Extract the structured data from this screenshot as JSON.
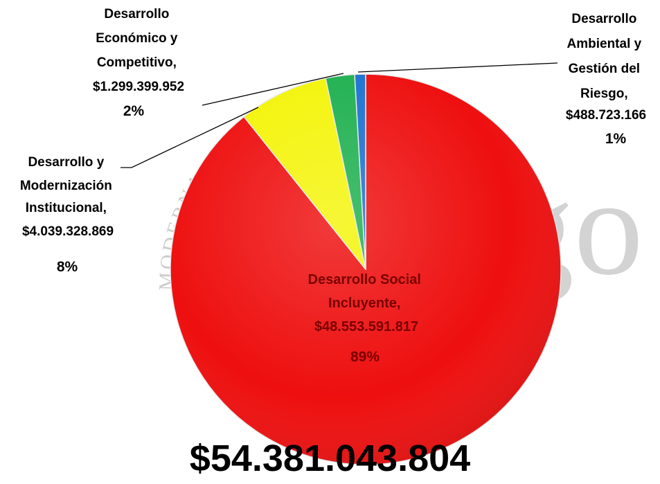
{
  "colors": {
    "social": "#ee0f0f",
    "modernizacion": "#f4f40a",
    "economico": "#1fb050",
    "ambiental": "#1c72d0",
    "watermark": "#cccccc"
  },
  "watermark": {
    "arc_text": "MODERNA, COMPETITIVA E IN",
    "big_text": "ago"
  },
  "chart_data": {
    "type": "pie",
    "total_label": "$54.381.043.804",
    "slices": [
      {
        "key": "social",
        "label_lines": [
          "Desarrollo Social",
          "Incluyente,",
          "$48.553.591.817"
        ],
        "value": 48553591817,
        "percent_label": "89%",
        "color_key": "social"
      },
      {
        "key": "modernizacion",
        "label_lines": [
          "Desarrollo y",
          "Modernización",
          "Institucional,",
          "$4.039.328.869"
        ],
        "value": 4039328869,
        "percent_label": "8%",
        "color_key": "modernizacion"
      },
      {
        "key": "economico",
        "label_lines": [
          "Desarrollo",
          "Económico y",
          "Competitivo,",
          "$1.299.399.952"
        ],
        "value": 1299399952,
        "percent_label": "2%",
        "color_key": "economico"
      },
      {
        "key": "ambiental",
        "label_lines": [
          "Desarrollo",
          "Ambiental y",
          "Gestión del",
          "Riesgo,",
          "$488.723.166"
        ],
        "value": 488723166,
        "percent_label": "1%",
        "color_key": "ambiental"
      }
    ]
  }
}
